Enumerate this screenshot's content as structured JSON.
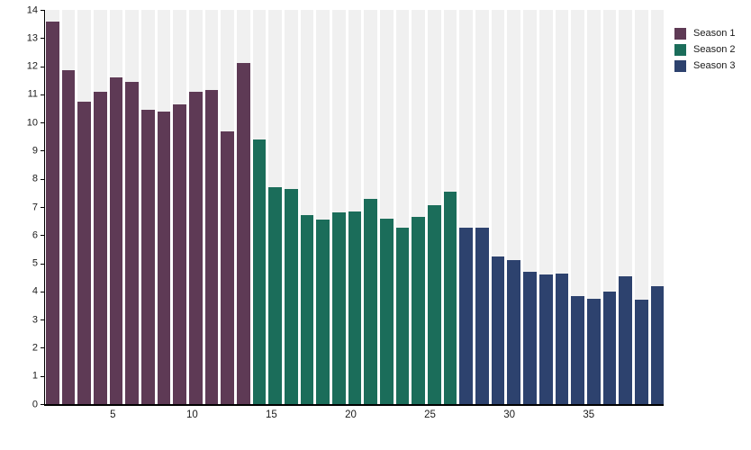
{
  "chart_data": {
    "type": "bar",
    "title": "",
    "xlabel": "",
    "ylabel": "",
    "ylim": [
      0,
      14
    ],
    "y_ticks": [
      0,
      1,
      2,
      3,
      4,
      5,
      6,
      7,
      8,
      9,
      10,
      11,
      12,
      13,
      14
    ],
    "x_tick_positions": [
      5,
      10,
      15,
      20,
      25,
      30,
      35
    ],
    "grid": false,
    "legend_position": "top-right",
    "slot_background_color": "#f0f0f0",
    "axis_color": "#000000",
    "series": [
      {
        "name": "Season 1",
        "color": "#5e3a55",
        "values": [
          13.6,
          11.85,
          10.75,
          11.1,
          11.6,
          11.45,
          10.45,
          10.4,
          10.65,
          11.1,
          11.15,
          9.7,
          12.1
        ]
      },
      {
        "name": "Season 2",
        "color": "#1b6d5a",
        "values": [
          9.4,
          7.7,
          7.65,
          6.7,
          6.55,
          6.8,
          6.85,
          7.3,
          6.6,
          6.25,
          6.65,
          7.05,
          7.55
        ]
      },
      {
        "name": "Season 3",
        "color": "#2d426e",
        "values": [
          6.25,
          6.25,
          5.25,
          5.1,
          4.7,
          4.6,
          4.65,
          3.85,
          3.75,
          4.0,
          4.55,
          3.7,
          4.2
        ]
      }
    ]
  }
}
